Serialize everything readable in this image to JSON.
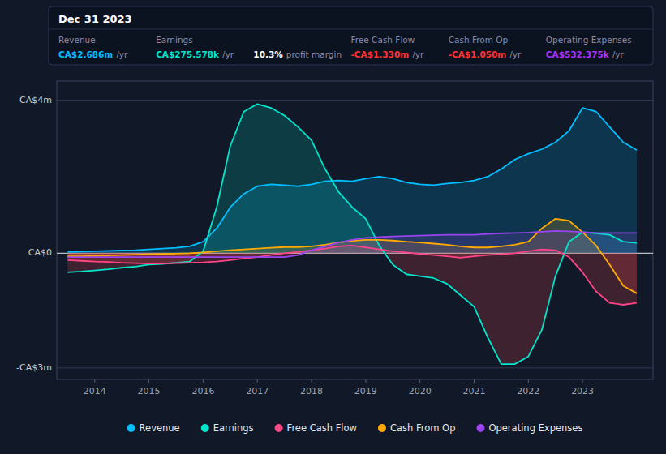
{
  "chart_data": {
    "type": "area",
    "xlim": [
      2013.3,
      2024.3
    ],
    "xticks": [
      2014,
      2015,
      2016,
      2017,
      2018,
      2019,
      2020,
      2021,
      2022,
      2023
    ],
    "ylim": [
      -3.3,
      4.5
    ],
    "yticks": [
      {
        "value": 4.0,
        "label": "CA$4m"
      },
      {
        "value": 0.0,
        "label": "CA$0"
      },
      {
        "value": -3.0,
        "label": "-CA$3m"
      }
    ],
    "grid": true,
    "legend": "bottom",
    "x": [
      2013.5,
      2013.75,
      2014.0,
      2014.25,
      2014.5,
      2014.75,
      2015.0,
      2015.25,
      2015.5,
      2015.75,
      2016.0,
      2016.25,
      2016.5,
      2016.75,
      2017.0,
      2017.25,
      2017.5,
      2017.75,
      2018.0,
      2018.25,
      2018.5,
      2018.75,
      2019.0,
      2019.25,
      2019.5,
      2019.75,
      2020.0,
      2020.25,
      2020.5,
      2020.75,
      2021.0,
      2021.25,
      2021.5,
      2021.75,
      2022.0,
      2022.25,
      2022.5,
      2022.75,
      2023.0,
      2023.25,
      2023.5,
      2023.75,
      2024.0
    ],
    "series": [
      {
        "name": "Revenue",
        "color": "#00bfff",
        "values": [
          0.03,
          0.04,
          0.05,
          0.06,
          0.07,
          0.08,
          0.1,
          0.12,
          0.14,
          0.18,
          0.3,
          0.65,
          1.2,
          1.55,
          1.75,
          1.8,
          1.78,
          1.75,
          1.8,
          1.88,
          1.9,
          1.88,
          1.95,
          2.0,
          1.95,
          1.85,
          1.8,
          1.78,
          1.82,
          1.85,
          1.9,
          2.0,
          2.2,
          2.45,
          2.6,
          2.72,
          2.9,
          3.2,
          3.8,
          3.7,
          3.3,
          2.9,
          2.7
        ]
      },
      {
        "name": "Earnings",
        "color": "#00e5cc",
        "values": [
          -0.5,
          -0.48,
          -0.45,
          -0.42,
          -0.38,
          -0.35,
          -0.3,
          -0.28,
          -0.25,
          -0.22,
          0.05,
          1.2,
          2.8,
          3.7,
          3.9,
          3.8,
          3.6,
          3.3,
          2.95,
          2.2,
          1.6,
          1.2,
          0.9,
          0.2,
          -0.3,
          -0.55,
          -0.6,
          -0.65,
          -0.8,
          -1.1,
          -1.4,
          -2.2,
          -2.9,
          -2.9,
          -2.7,
          -2.0,
          -0.6,
          0.3,
          0.55,
          0.52,
          0.48,
          0.3,
          0.27
        ]
      },
      {
        "name": "Free Cash Flow",
        "color": "#ff4488",
        "values": [
          -0.18,
          -0.2,
          -0.22,
          -0.23,
          -0.25,
          -0.26,
          -0.27,
          -0.27,
          -0.26,
          -0.25,
          -0.24,
          -0.22,
          -0.18,
          -0.14,
          -0.1,
          -0.05,
          0.0,
          0.03,
          0.08,
          0.12,
          0.18,
          0.2,
          0.15,
          0.1,
          0.05,
          0.02,
          -0.02,
          -0.05,
          -0.08,
          -0.12,
          -0.08,
          -0.05,
          -0.03,
          0.0,
          0.05,
          0.1,
          0.08,
          -0.1,
          -0.5,
          -1.0,
          -1.3,
          -1.35,
          -1.3
        ]
      },
      {
        "name": "Cash From Op",
        "color": "#ffaa00",
        "values": [
          -0.08,
          -0.08,
          -0.07,
          -0.06,
          -0.05,
          -0.04,
          -0.03,
          -0.02,
          -0.01,
          0.0,
          0.02,
          0.05,
          0.08,
          0.1,
          0.12,
          0.14,
          0.16,
          0.16,
          0.18,
          0.22,
          0.28,
          0.32,
          0.35,
          0.35,
          0.33,
          0.3,
          0.28,
          0.25,
          0.22,
          0.18,
          0.15,
          0.15,
          0.18,
          0.22,
          0.3,
          0.65,
          0.9,
          0.85,
          0.55,
          0.2,
          -0.3,
          -0.85,
          -1.05
        ]
      },
      {
        "name": "Operating Expenses",
        "color": "#9944ee",
        "values": [
          -0.1,
          -0.1,
          -0.1,
          -0.1,
          -0.1,
          -0.1,
          -0.1,
          -0.1,
          -0.1,
          -0.1,
          -0.1,
          -0.1,
          -0.1,
          -0.1,
          -0.1,
          -0.1,
          -0.1,
          -0.05,
          0.08,
          0.18,
          0.28,
          0.35,
          0.4,
          0.42,
          0.44,
          0.45,
          0.46,
          0.47,
          0.48,
          0.48,
          0.48,
          0.5,
          0.52,
          0.53,
          0.54,
          0.56,
          0.58,
          0.57,
          0.55,
          0.53,
          0.53,
          0.53,
          0.53
        ]
      }
    ],
    "annotations": [
      {
        "text": "Dec 31 2023"
      },
      {
        "label": "Revenue",
        "text": "CA$2.686m",
        "suffix": "/yr",
        "color": "#00bfff"
      },
      {
        "label": "Earnings",
        "text": "CA$275.578k",
        "suffix": "/yr",
        "color": "#00e5cc"
      },
      {
        "text": "10.3%",
        "suffix": "profit margin",
        "color": "#ffffff"
      },
      {
        "label": "Free Cash Flow",
        "text": "-CA$1.330m",
        "suffix": "/yr",
        "color": "#ff3333"
      },
      {
        "label": "Cash From Op",
        "text": "-CA$1.050m",
        "suffix": "/yr",
        "color": "#ff3333"
      },
      {
        "label": "Operating Expenses",
        "text": "CA$532.375k",
        "suffix": "/yr",
        "color": "#aa33ff"
      }
    ]
  }
}
